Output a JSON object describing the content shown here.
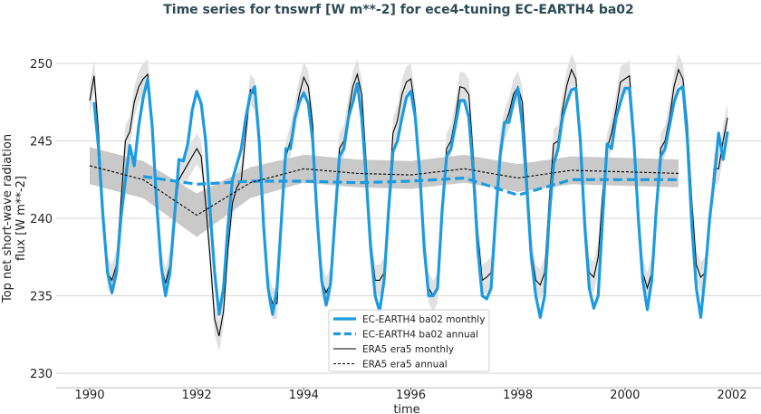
{
  "chart_data": {
    "type": "line",
    "title": "Time series for tnswrf [W m**-2] for ece4-tuning EC-EARTH4 ba02",
    "xlabel": "time",
    "ylabel": [
      "Top net short-wave radiation",
      "flux [W m**-2]"
    ],
    "xlim": [
      1989.5,
      2002.5
    ],
    "ylim": [
      229.5,
      252.2
    ],
    "xticks": [
      "1990",
      "1992",
      "1994",
      "1996",
      "1998",
      "2000",
      "2002"
    ],
    "yticks": [
      "230",
      "235",
      "240",
      "245",
      "250"
    ],
    "grid": "horizontal",
    "legend_position": "bottom-center",
    "colors": {
      "model": "#1b9be0",
      "era5": "#000000",
      "era5_monthly_band": "#e1e1e1",
      "era5_annual_band": "#c9c9c9",
      "title": "#2e4a54"
    },
    "monthly_start": "1990-01",
    "series": [
      {
        "name": "EC-EARTH4 ba02 monthly",
        "style": "solid-thick",
        "values": [
          null,
          247.5,
          244.5,
          240,
          236.5,
          235.2,
          236.5,
          240,
          242.5,
          244.7,
          243.4,
          246.0,
          247.8,
          249.0,
          246.0,
          241.0,
          237.0,
          235.0,
          236.5,
          240.0,
          243.8,
          243.7,
          244.8,
          247.0,
          248.2,
          247.4,
          245.0,
          240.5,
          236.5,
          233.8,
          235.5,
          239.5,
          242.5,
          243.5,
          244.5,
          246.5,
          248.0,
          248.5,
          245.0,
          239.5,
          235.5,
          233.8,
          235.5,
          240.0,
          244.5,
          244.5,
          246.5,
          247.5,
          248.1,
          247.4,
          245.0,
          240.0,
          236.0,
          234.4,
          235.8,
          240.0,
          244.0,
          244.5,
          246.5,
          247.5,
          248.7,
          246.5,
          242.5,
          238.0,
          235.0,
          234.0,
          236.0,
          240.5,
          244.3,
          245.0,
          246.5,
          247.8,
          248.2,
          246.5,
          243.0,
          238.0,
          235.0,
          235.0,
          235.5,
          240.5,
          244.0,
          244.5,
          246.0,
          247.6,
          247.6,
          246.5,
          243.0,
          238.0,
          235.0,
          234.8,
          235.5,
          240.0,
          244.0,
          246.2,
          246.2,
          247.5,
          248.4,
          246.0,
          242.0,
          237.5,
          235.0,
          233.6,
          235.0,
          240.0,
          243.5,
          244.5,
          246.5,
          247.5,
          248.3,
          248.4,
          245.0,
          239.5,
          235.5,
          234.2,
          235.0,
          240.0,
          244.8,
          244.5,
          246.5,
          247.5,
          248.4,
          248.4,
          245.0,
          240.0,
          236.0,
          234.1,
          236.0,
          240.5,
          244.0,
          244.5,
          246.0,
          247.5,
          248.3,
          248.5,
          245.0,
          239.5,
          235.5,
          233.6,
          236.5,
          240.0,
          242.5,
          245.5,
          243.8,
          245.6
        ]
      },
      {
        "name": "EC-EARTH4 ba02 annual",
        "style": "dashed-thick",
        "years": [
          1991,
          1992,
          1993,
          1994,
          1995,
          1996,
          1997,
          1998,
          1999,
          2000,
          2001
        ],
        "values": [
          242.7,
          242.2,
          242.4,
          242.4,
          242.3,
          242.4,
          242.6,
          241.5,
          242.5,
          242.5,
          242.5
        ]
      },
      {
        "name": "ERA5 era5 monthly",
        "style": "solid-thin",
        "band_halfwidth": 1.0,
        "values": [
          247.6,
          249.2,
          245.5,
          240.5,
          236.5,
          236.0,
          237.0,
          241.0,
          245.0,
          245.6,
          247.5,
          248.5,
          249.0,
          249.3,
          246.0,
          241.5,
          237.0,
          235.8,
          237.0,
          240.5,
          242.5,
          243.0,
          243.5,
          244.0,
          244.5,
          244.0,
          241.0,
          237.5,
          233.5,
          232.4,
          234.0,
          238.0,
          241.0,
          242.0,
          242.5,
          245.5,
          248.3,
          248.0,
          245.5,
          240.0,
          235.5,
          234.5,
          234.5,
          240.0,
          244.0,
          245.0,
          246.5,
          248.0,
          249.1,
          248.5,
          246.0,
          240.5,
          236.0,
          235.2,
          235.8,
          240.5,
          244.5,
          245.0,
          246.8,
          248.5,
          249.3,
          248.0,
          243.5,
          238.5,
          236.0,
          236.0,
          236.5,
          241.0,
          245.5,
          246.3,
          248.0,
          248.8,
          249.0,
          247.0,
          243.0,
          238.5,
          235.5,
          235.0,
          235.5,
          240.0,
          244.5,
          245.0,
          246.5,
          248.5,
          248.4,
          248.0,
          244.0,
          239.0,
          236.0,
          236.2,
          236.5,
          240.5,
          244.5,
          246.0,
          246.8,
          248.0,
          248.5,
          247.5,
          243.0,
          238.0,
          236.0,
          235.7,
          236.5,
          241.0,
          244.8,
          245.0,
          247.0,
          248.6,
          249.6,
          249.0,
          245.0,
          240.0,
          236.5,
          236.2,
          237.5,
          241.5,
          244.5,
          245.5,
          247.0,
          248.8,
          249.0,
          249.2,
          245.5,
          240.0,
          236.5,
          235.5,
          236.5,
          240.5,
          244.5,
          245.0,
          246.5,
          248.5,
          249.6,
          249.0,
          246.0,
          241.0,
          237.0,
          236.2,
          236.5,
          240.0,
          243.2,
          243.2,
          245.0,
          246.5
        ]
      },
      {
        "name": "ERA5 era5 annual",
        "style": "dashed-thin",
        "band_halfwidth": [
          1.2,
          1.2,
          1.4,
          1.0,
          0.9,
          0.9,
          0.9,
          0.9,
          0.9,
          0.9,
          0.9,
          0.9
        ],
        "years": [
          1990,
          1991,
          1992,
          1993,
          1994,
          1995,
          1996,
          1997,
          1998,
          1999,
          2000,
          2001
        ],
        "values": [
          243.4,
          242.5,
          240.2,
          242.3,
          243.2,
          242.9,
          242.8,
          243.2,
          242.6,
          243.1,
          243.0,
          242.9
        ]
      }
    ]
  }
}
